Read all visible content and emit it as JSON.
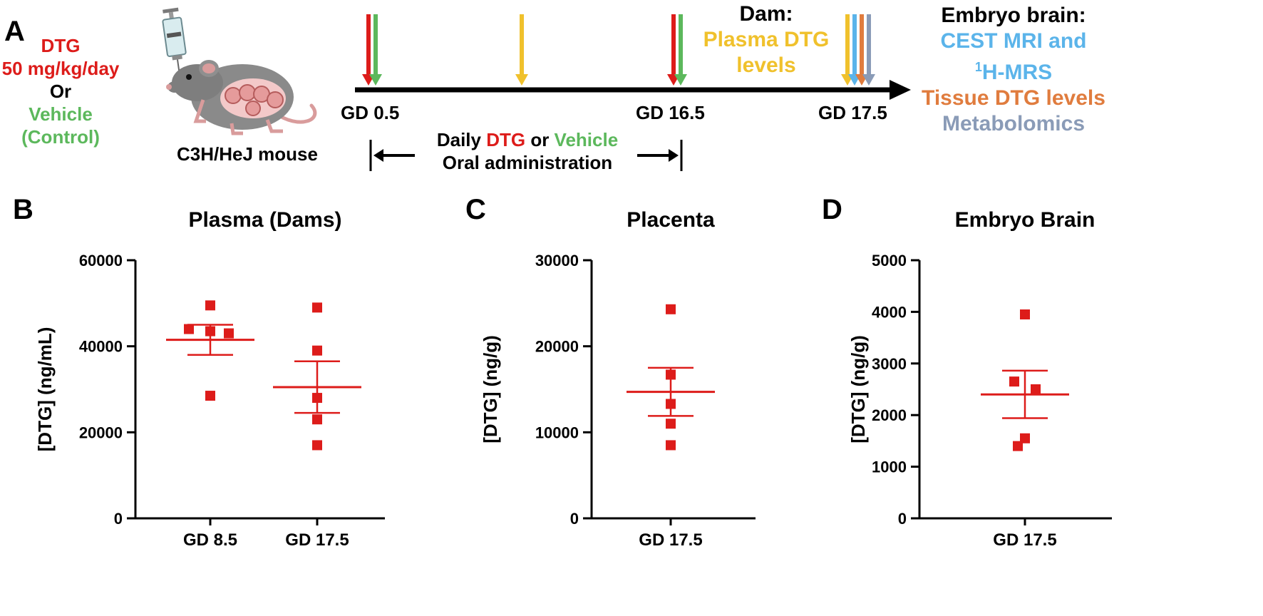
{
  "panelA": {
    "letter": "A",
    "treatment": {
      "drug": "DTG",
      "dose": "50 mg/kg/day",
      "or": "Or",
      "vehicle": "Vehicle",
      "control": "(Control)"
    },
    "mouse_label": "C3H/HeJ mouse",
    "timeline": {
      "gd_start": "GD 0.5",
      "gd_mid": "GD 16.5",
      "gd_end": "GD 17.5",
      "daily_prefix": "Daily ",
      "daily_drug": "DTG",
      "daily_or": " or ",
      "daily_vehicle": "Vehicle",
      "oral": "Oral administration"
    },
    "dam": {
      "title": "Dam:",
      "line1": "Plasma DTG",
      "line2": "levels"
    },
    "embryo": {
      "title": "Embryo brain:",
      "cest": "CEST MRI and",
      "h_sup": "1",
      "mrs": "H-MRS",
      "tissue": "Tissue DTG levels",
      "metab": "Metabolomics"
    },
    "colors": {
      "dtg": "#DD1C1A",
      "vehicle": "#5CB85C",
      "plasma": "#F0C12C",
      "mri": "#5BB4EA",
      "tissue": "#E07C3E",
      "metabolomics": "#8A9BB7"
    }
  },
  "chart_data": [
    {
      "letter": "B",
      "type": "scatter",
      "title": "Plasma (Dams)",
      "ylabel": "[DTG] (ng/mL)",
      "xlabel": "",
      "categories": [
        "GD 8.5",
        "GD 17.5"
      ],
      "ylim": [
        0,
        60000
      ],
      "yticks": [
        "0",
        "20000",
        "40000",
        "60000"
      ],
      "points": [
        [
          49500,
          44000,
          43500,
          43000,
          28500
        ],
        [
          49000,
          39000,
          28000,
          23000,
          17000
        ]
      ],
      "mean": [
        41500,
        30500
      ],
      "sem": [
        3500,
        6000
      ],
      "color": "#DD1C1A"
    },
    {
      "letter": "C",
      "type": "scatter",
      "title": "Placenta",
      "ylabel": "[DTG] (ng/g)",
      "xlabel": "",
      "categories": [
        "GD 17.5"
      ],
      "ylim": [
        0,
        30000
      ],
      "yticks": [
        "0",
        "10000",
        "20000",
        "30000"
      ],
      "points": [
        [
          24300,
          16700,
          13300,
          11000,
          8500
        ]
      ],
      "mean": [
        14700
      ],
      "sem": [
        2800
      ],
      "color": "#DD1C1A"
    },
    {
      "letter": "D",
      "type": "scatter",
      "title": "Embryo Brain",
      "ylabel": "[DTG] (ng/g)",
      "xlabel": "",
      "categories": [
        "GD 17.5"
      ],
      "ylim": [
        0,
        5000
      ],
      "yticks": [
        "0",
        "1000",
        "2000",
        "3000",
        "4000",
        "5000"
      ],
      "points": [
        [
          3950,
          2650,
          2500,
          1550,
          1400
        ]
      ],
      "mean": [
        2400
      ],
      "sem": [
        460
      ],
      "color": "#DD1C1A"
    }
  ]
}
